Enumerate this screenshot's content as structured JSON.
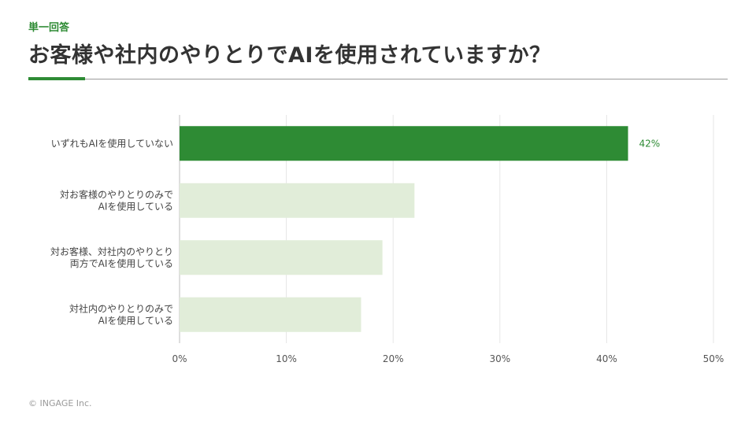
{
  "header": {
    "tag": "単一回答",
    "title": "お客様や社内のやりとりでAIを使用されていますか？"
  },
  "footer": {
    "copyright": "© INGAGE Inc."
  },
  "colors": {
    "accent": "#2e8b34",
    "bar_highlight": "#2e8b34",
    "bar_muted": "#e1edd9",
    "grid": "#e6e6e6"
  },
  "chart_data": {
    "type": "bar",
    "orientation": "horizontal",
    "categories": [
      [
        "いずれもAIを使用していない"
      ],
      [
        "対お客様のやりとりのみで",
        "AIを使用している"
      ],
      [
        "対お客様、対社内のやりとり",
        "両方でAIを使用している"
      ],
      [
        "対社内のやりとりのみで",
        "AIを使用している"
      ]
    ],
    "values": [
      42,
      22,
      19,
      17
    ],
    "value_labels": [
      "42%",
      "",
      "",
      ""
    ],
    "highlight_index": 0,
    "xlim": [
      0,
      50
    ],
    "xticks": [
      0,
      10,
      20,
      30,
      40,
      50
    ],
    "xtick_labels": [
      "0%",
      "10%",
      "20%",
      "30%",
      "40%",
      "50%"
    ],
    "grid": true,
    "xlabel": "",
    "ylabel": ""
  }
}
